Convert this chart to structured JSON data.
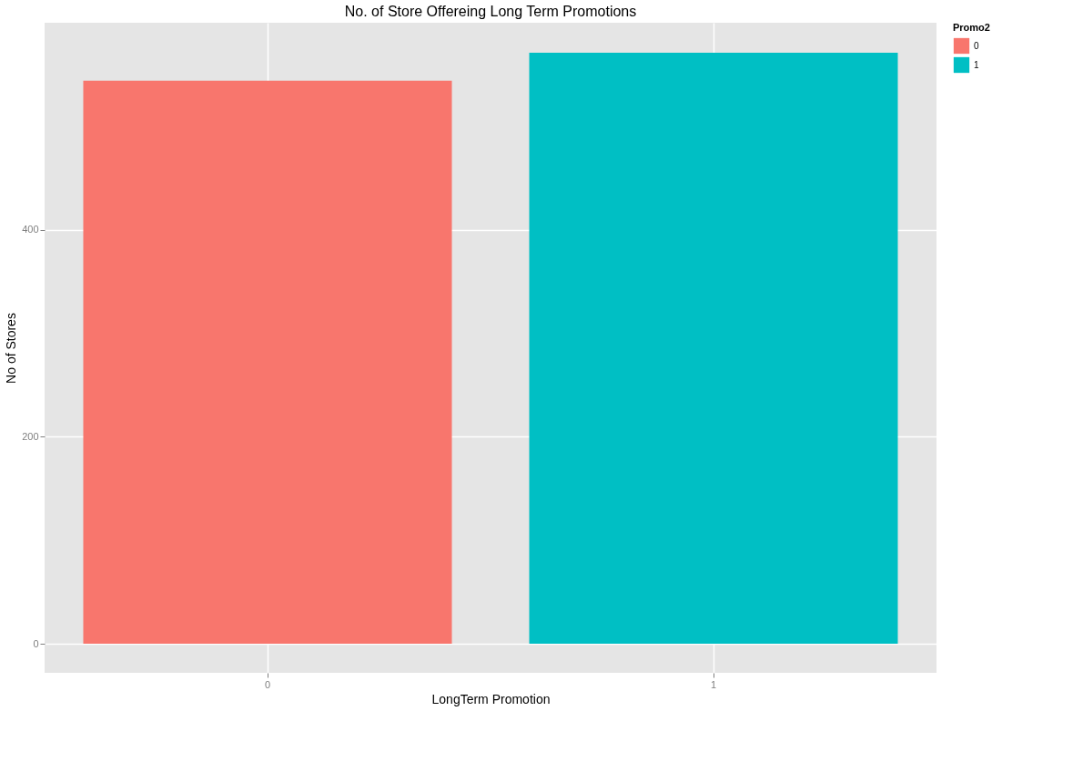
{
  "chart_data": {
    "type": "bar",
    "title": "No. of Store Offereing Long Term Promotions",
    "xlabel": "LongTerm Promotion",
    "ylabel": "No of Stores",
    "legend_title": "Promo2",
    "categories": [
      "0",
      "1"
    ],
    "series": [
      {
        "name": "0",
        "color": "#f8766d",
        "values": [
          544,
          null
        ]
      },
      {
        "name": "1",
        "color": "#00bfc4",
        "values": [
          null,
          571
        ]
      }
    ],
    "ylim": [
      -28,
      600
    ],
    "yticks": [
      0,
      200,
      400
    ],
    "grid": true,
    "legend": "right"
  }
}
